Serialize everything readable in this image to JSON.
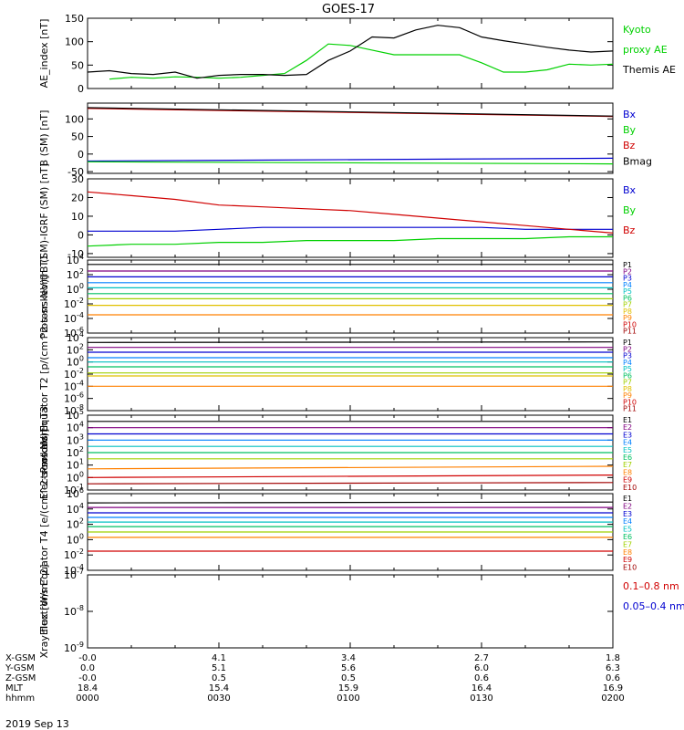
{
  "title": "GOES-17",
  "date_label": "2019 Sep 13",
  "colors": {
    "black": "#000000",
    "blue": "#0000d0",
    "green": "#00d000",
    "red": "#d00000"
  },
  "footer": {
    "rows": [
      {
        "label": "X-GSM",
        "values": [
          "-0.0",
          "4.1",
          "3.4",
          "2.7",
          "1.8"
        ]
      },
      {
        "label": "Y-GSM",
        "values": [
          "0.0",
          "5.1",
          "5.6",
          "6.0",
          "6.3"
        ]
      },
      {
        "label": "Z-GSM",
        "values": [
          "-0.0",
          "0.5",
          "0.5",
          "0.6",
          "0.6"
        ]
      },
      {
        "label": "MLT",
        "values": [
          "18.4",
          "15.4",
          "15.9",
          "16.4",
          "16.9"
        ]
      },
      {
        "label": "hhmm",
        "values": [
          "0000",
          "0030",
          "0100",
          "0130",
          "0200"
        ]
      }
    ]
  },
  "chart_data": [
    {
      "type": "line",
      "ylabel": "AE_index [nT]",
      "yscale": "linear",
      "ylim": [
        0,
        150
      ],
      "yticks": [
        "0",
        "50",
        "100",
        "150"
      ],
      "x": [
        0,
        5,
        10,
        15,
        20,
        25,
        30,
        35,
        40,
        45,
        50,
        55,
        60,
        65,
        70,
        75,
        80,
        85,
        90,
        95,
        100,
        105,
        110,
        115,
        120
      ],
      "series": [
        {
          "name": "Kyoto proxy AE",
          "color": "#00d000",
          "label_lines": [
            "Kyoto",
            "proxy AE"
          ],
          "values": [
            null,
            20,
            24,
            22,
            25,
            24,
            22,
            24,
            28,
            32,
            60,
            95,
            92,
            82,
            72,
            72,
            72,
            72,
            55,
            35,
            35,
            40,
            52,
            50,
            52
          ]
        },
        {
          "name": "Themis AE",
          "color": "#000000",
          "label_lines": [
            "Themis AE"
          ],
          "values": [
            35,
            38,
            32,
            30,
            35,
            22,
            28,
            30,
            30,
            28,
            30,
            60,
            80,
            110,
            108,
            125,
            135,
            130,
            110,
            102,
            95,
            88,
            82,
            78,
            80
          ]
        }
      ]
    },
    {
      "type": "line",
      "ylabel": "B (SM) [nT]",
      "yscale": "linear",
      "ylim": [
        -55,
        145
      ],
      "yticks": [
        "-50",
        "0",
        "50",
        "100"
      ],
      "x": [
        0,
        120
      ],
      "series": [
        {
          "name": "Bx",
          "color": "#0000d0",
          "label_lines": [
            "Bx"
          ],
          "values": [
            -20,
            -12
          ]
        },
        {
          "name": "By",
          "color": "#00d000",
          "label_lines": [
            "By"
          ],
          "values": [
            -22,
            -28
          ]
        },
        {
          "name": "Bz",
          "color": "#d00000",
          "label_lines": [
            "Bz"
          ],
          "values": [
            130,
            107
          ]
        },
        {
          "name": "Bmag",
          "color": "#000000",
          "label_lines": [
            "Bmag"
          ],
          "values": [
            132,
            108
          ]
        }
      ]
    },
    {
      "type": "line",
      "ylabel": "B (SM)-IGRF (SM) [nT]",
      "yscale": "linear",
      "ylim": [
        -12,
        30
      ],
      "yticks": [
        "-10",
        "0",
        "10",
        "20",
        "30"
      ],
      "x": [
        0,
        10,
        20,
        30,
        40,
        50,
        60,
        70,
        80,
        90,
        100,
        110,
        120
      ],
      "series": [
        {
          "name": "Bx",
          "color": "#0000d0",
          "label_lines": [
            "Bx"
          ],
          "values": [
            2,
            2,
            2,
            3,
            4,
            4,
            4,
            4,
            4,
            4,
            3,
            3,
            3
          ]
        },
        {
          "name": "By",
          "color": "#00d000",
          "label_lines": [
            "By"
          ],
          "values": [
            -6,
            -5,
            -5,
            -4,
            -4,
            -3,
            -3,
            -3,
            -2,
            -2,
            -2,
            -1,
            -1
          ]
        },
        {
          "name": "Bz",
          "color": "#d00000",
          "label_lines": [
            "Bz"
          ],
          "values": [
            23,
            21,
            19,
            16,
            15,
            14,
            13,
            11,
            9,
            7,
            5,
            3,
            1
          ]
        }
      ]
    },
    {
      "type": "line",
      "ylabel": "Protons North T1",
      "yscale": "log",
      "ylim": [
        -6,
        4
      ],
      "yticks": [
        "10^-6",
        "10^-4",
        "10^-2",
        "10^0",
        "10^2",
        "10^4"
      ],
      "x": [
        0,
        120
      ],
      "series": [
        {
          "name": "P1",
          "color": "#000000",
          "label_lines": [
            "P1"
          ],
          "values": [
            3.4,
            3.4
          ]
        },
        {
          "name": "P2",
          "color": "#800080",
          "label_lines": [
            "P2"
          ],
          "values": [
            2.5,
            2.5
          ]
        },
        {
          "name": "P3",
          "color": "#0000d0",
          "label_lines": [
            "P3"
          ],
          "values": [
            1.7,
            1.7
          ]
        },
        {
          "name": "P4",
          "color": "#0080ff",
          "label_lines": [
            "P4"
          ],
          "values": [
            0.9,
            0.9
          ]
        },
        {
          "name": "P5",
          "color": "#00c0c0",
          "label_lines": [
            "P5"
          ],
          "values": [
            0.2,
            0.2
          ]
        },
        {
          "name": "P6",
          "color": "#00c060",
          "label_lines": [
            "P6"
          ],
          "values": [
            -0.6,
            -0.6
          ]
        },
        {
          "name": "P7",
          "color": "#a0d000",
          "label_lines": [
            "P7"
          ],
          "values": [
            -1.3,
            -1.3
          ]
        },
        {
          "name": "P8",
          "color": "#e0c000",
          "label_lines": [
            "P8"
          ],
          "values": [
            -2.2,
            -2.2
          ]
        },
        {
          "name": "P9",
          "color": "#ff8000",
          "label_lines": [
            "P9"
          ],
          "values": [
            -3.5,
            -3.5
          ]
        },
        {
          "name": "P10",
          "color": "#d00000",
          "label_lines": [
            "P10"
          ],
          "values": [
            null,
            null
          ]
        },
        {
          "name": "P11",
          "color": "#a00000",
          "label_lines": [
            "P11"
          ],
          "values": [
            null,
            null
          ]
        }
      ]
    },
    {
      "type": "line",
      "ylabel": "Protons Equator T2 [p/(cm^2-s-sr-keV)]",
      "yscale": "log",
      "ylim": [
        -8,
        4
      ],
      "yticks": [
        "10^-8",
        "10^-6",
        "10^-4",
        "10^-2",
        "10^0",
        "10^2",
        "10^4"
      ],
      "x": [
        0,
        120
      ],
      "series": [
        {
          "name": "P1",
          "color": "#000000",
          "label_lines": [
            "P1"
          ],
          "values": [
            3.2,
            3.3
          ]
        },
        {
          "name": "P2",
          "color": "#800080",
          "label_lines": [
            "P2"
          ],
          "values": [
            2.4,
            2.4
          ]
        },
        {
          "name": "P3",
          "color": "#0000d0",
          "label_lines": [
            "P3"
          ],
          "values": [
            1.6,
            1.6
          ]
        },
        {
          "name": "P4",
          "color": "#0080ff",
          "label_lines": [
            "P4"
          ],
          "values": [
            0.7,
            0.7
          ]
        },
        {
          "name": "P5",
          "color": "#00c0c0",
          "label_lines": [
            "P5"
          ],
          "values": [
            0.0,
            0.0
          ]
        },
        {
          "name": "P6",
          "color": "#00c060",
          "label_lines": [
            "P6"
          ],
          "values": [
            -0.8,
            -0.8
          ]
        },
        {
          "name": "P7",
          "color": "#a0d000",
          "label_lines": [
            "P7"
          ],
          "values": [
            -1.8,
            -1.8
          ]
        },
        {
          "name": "P8",
          "color": "#e0c000",
          "label_lines": [
            "P8"
          ],
          "values": [
            -2.3,
            -2.3
          ]
        },
        {
          "name": "P9",
          "color": "#ff8000",
          "label_lines": [
            "P9"
          ],
          "values": [
            -4.0,
            -4.0
          ]
        },
        {
          "name": "P10",
          "color": "#d00000",
          "label_lines": [
            "P10"
          ],
          "values": [
            null,
            null
          ]
        },
        {
          "name": "P11",
          "color": "#a00000",
          "label_lines": [
            "P11"
          ],
          "values": [
            null,
            null
          ]
        }
      ]
    },
    {
      "type": "line",
      "ylabel": "Electrons North T3",
      "yscale": "log",
      "ylim": [
        -1,
        5
      ],
      "yticks": [
        "10^-1",
        "10^0",
        "10^1",
        "10^2",
        "10^3",
        "10^4",
        "10^5"
      ],
      "x": [
        0,
        120
      ],
      "series": [
        {
          "name": "E1",
          "color": "#000000",
          "label_lines": [
            "E1"
          ],
          "values": [
            4.5,
            4.5
          ]
        },
        {
          "name": "E2",
          "color": "#800080",
          "label_lines": [
            "E2"
          ],
          "values": [
            4.0,
            4.0
          ]
        },
        {
          "name": "E3",
          "color": "#0000d0",
          "label_lines": [
            "E3"
          ],
          "values": [
            3.5,
            3.5
          ]
        },
        {
          "name": "E4",
          "color": "#0080ff",
          "label_lines": [
            "E4"
          ],
          "values": [
            3.0,
            3.0
          ]
        },
        {
          "name": "E5",
          "color": "#00c0c0",
          "label_lines": [
            "E5"
          ],
          "values": [
            2.5,
            2.5
          ]
        },
        {
          "name": "E6",
          "color": "#00c060",
          "label_lines": [
            "E6"
          ],
          "values": [
            2.0,
            2.0
          ]
        },
        {
          "name": "E7",
          "color": "#a0d000",
          "label_lines": [
            "E7"
          ],
          "values": [
            1.5,
            1.5
          ]
        },
        {
          "name": "E8",
          "color": "#ff8000",
          "label_lines": [
            "E8"
          ],
          "values": [
            0.7,
            0.9
          ]
        },
        {
          "name": "E9",
          "color": "#d00000",
          "label_lines": [
            "E9"
          ],
          "values": [
            0.0,
            0.2
          ]
        },
        {
          "name": "E10",
          "color": "#a00000",
          "label_lines": [
            "E10"
          ],
          "values": [
            -0.5,
            -0.4
          ]
        }
      ]
    },
    {
      "type": "line",
      "ylabel": "Electrons Equator T4 [e/(cm^2-s-sr-keV)]",
      "yscale": "log",
      "ylim": [
        -4,
        6
      ],
      "yticks": [
        "10^-4",
        "10^-2",
        "10^0",
        "10^2",
        "10^4",
        "10^6"
      ],
      "x": [
        0,
        120
      ],
      "series": [
        {
          "name": "E1",
          "color": "#000000",
          "label_lines": [
            "E1"
          ],
          "values": [
            4.8,
            4.9
          ]
        },
        {
          "name": "E2",
          "color": "#800080",
          "label_lines": [
            "E2"
          ],
          "values": [
            4.2,
            4.2
          ]
        },
        {
          "name": "E3",
          "color": "#0000d0",
          "label_lines": [
            "E3"
          ],
          "values": [
            3.5,
            3.5
          ]
        },
        {
          "name": "E4",
          "color": "#0080ff",
          "label_lines": [
            "E4"
          ],
          "values": [
            2.9,
            2.9
          ]
        },
        {
          "name": "E5",
          "color": "#00c0c0",
          "label_lines": [
            "E5"
          ],
          "values": [
            2.3,
            2.3
          ]
        },
        {
          "name": "E6",
          "color": "#00c060",
          "label_lines": [
            "E6"
          ],
          "values": [
            1.7,
            1.7
          ]
        },
        {
          "name": "E7",
          "color": "#a0d000",
          "label_lines": [
            "E7"
          ],
          "values": [
            1.0,
            1.0
          ]
        },
        {
          "name": "E8",
          "color": "#ff8000",
          "label_lines": [
            "E8"
          ],
          "values": [
            0.3,
            0.3
          ]
        },
        {
          "name": "E9",
          "color": "#d00000",
          "label_lines": [
            "E9"
          ],
          "values": [
            -1.5,
            -1.5
          ]
        },
        {
          "name": "E10",
          "color": "#a00000",
          "label_lines": [
            "E10"
          ],
          "values": [
            null,
            null
          ]
        }
      ]
    },
    {
      "type": "line",
      "ylabel": "Xray flux [W/m^2]",
      "yscale": "log",
      "ylim": [
        -9,
        -7
      ],
      "yticks": [
        "10^-9",
        "10^-8",
        "10^-7"
      ],
      "x": [
        0,
        120
      ],
      "series": [
        {
          "name": "0.1-0.8 nm",
          "color": "#d00000",
          "label_lines": [
            "0.1–0.8 nm"
          ],
          "values": [
            null,
            null
          ]
        },
        {
          "name": "0.05-0.4 nm",
          "color": "#0000d0",
          "label_lines": [
            "0.05–0.4 nm"
          ],
          "values": [
            null,
            null
          ]
        }
      ]
    }
  ]
}
